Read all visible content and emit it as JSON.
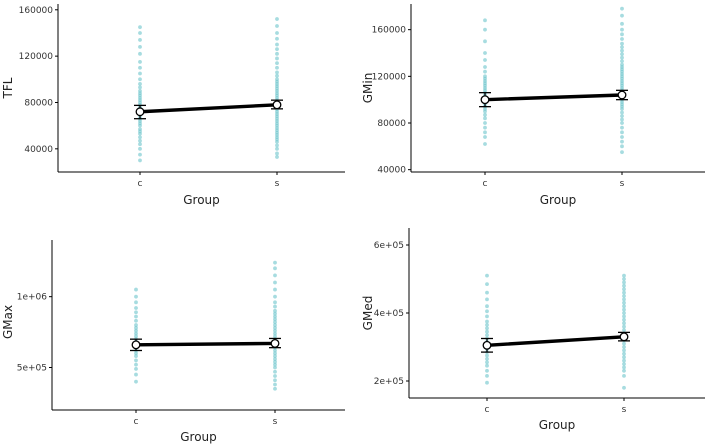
{
  "colors": {
    "points": "#6cc4cc",
    "line": "#000000"
  },
  "chart_data": [
    {
      "type": "scatter",
      "title": "",
      "xlabel": "Group",
      "ylabel": "TFL",
      "categories": [
        "c",
        "s"
      ],
      "ylim": [
        20000,
        165000
      ],
      "yticks": [
        40000,
        80000,
        120000,
        160000
      ],
      "ytick_labels": [
        "40000",
        "80000",
        "120000",
        "160000"
      ],
      "means": [
        72000,
        78000
      ],
      "ci_lower": [
        66000,
        74500
      ],
      "ci_upper": [
        77500,
        82000
      ],
      "points": {
        "c": [
          30000,
          35000,
          40000,
          44000,
          47000,
          50000,
          53000,
          55000,
          57000,
          60000,
          62000,
          64000,
          66000,
          68000,
          70000,
          72000,
          74000,
          76000,
          78000,
          80000,
          82000,
          84000,
          86000,
          88000,
          90000,
          93000,
          96000,
          100000,
          105000,
          110000,
          115000,
          122000,
          128000,
          134000,
          140000,
          145000
        ],
        "s": [
          33000,
          36000,
          40000,
          43000,
          46000,
          48000,
          50000,
          52000,
          54000,
          56000,
          58000,
          60000,
          62000,
          64000,
          66000,
          68000,
          70000,
          72000,
          74000,
          76000,
          78000,
          80000,
          82000,
          84000,
          86000,
          88000,
          90000,
          92000,
          94000,
          96000,
          98000,
          100000,
          103000,
          106000,
          110000,
          114000,
          118000,
          122000,
          126000,
          130000,
          135000,
          140000,
          146000,
          152000
        ]
      }
    },
    {
      "type": "scatter",
      "title": "",
      "xlabel": "Group",
      "ylabel": "GMin",
      "categories": [
        "c",
        "s"
      ],
      "ylim": [
        38000,
        182000
      ],
      "yticks": [
        40000,
        80000,
        120000,
        160000
      ],
      "ytick_labels": [
        "40000",
        "80000",
        "120000",
        "160000"
      ],
      "means": [
        100000,
        104000
      ],
      "ci_lower": [
        94000,
        100000
      ],
      "ci_upper": [
        106000,
        108000
      ],
      "points": {
        "c": [
          62000,
          68000,
          72000,
          76000,
          80000,
          84000,
          87000,
          90000,
          92000,
          94000,
          96000,
          98000,
          100000,
          102000,
          104000,
          106000,
          108000,
          110000,
          112000,
          114000,
          116000,
          118000,
          120000,
          124000,
          128000,
          134000,
          140000,
          150000,
          160000,
          168000
        ],
        "s": [
          55000,
          60000,
          64000,
          68000,
          72000,
          76000,
          80000,
          83000,
          86000,
          89000,
          92000,
          94000,
          96000,
          98000,
          100000,
          102000,
          104000,
          106000,
          108000,
          110000,
          112000,
          114000,
          116000,
          118000,
          120000,
          122000,
          124000,
          126000,
          128000,
          130000,
          133000,
          136000,
          139000,
          142000,
          145000,
          148000,
          152000,
          156000,
          160000,
          165000,
          172000,
          178000
        ]
      }
    },
    {
      "type": "scatter",
      "title": "",
      "xlabel": "Group",
      "ylabel": "GMax",
      "categories": [
        "c",
        "s"
      ],
      "ylim": [
        200000,
        1400000
      ],
      "yticks": [
        500000,
        1000000
      ],
      "ytick_labels": [
        "5e+05",
        "1e+06"
      ],
      "means": [
        660000,
        670000
      ],
      "ci_lower": [
        620000,
        640000
      ],
      "ci_upper": [
        700000,
        705000
      ],
      "points": {
        "c": [
          400000,
          450000,
          490000,
          520000,
          550000,
          580000,
          600000,
          620000,
          640000,
          660000,
          680000,
          700000,
          720000,
          740000,
          760000,
          780000,
          800000,
          830000,
          860000,
          890000,
          920000,
          960000,
          1000000,
          1050000
        ],
        "s": [
          350000,
          380000,
          410000,
          440000,
          470000,
          500000,
          520000,
          540000,
          560000,
          580000,
          600000,
          620000,
          640000,
          660000,
          680000,
          700000,
          720000,
          740000,
          760000,
          780000,
          800000,
          820000,
          840000,
          860000,
          880000,
          900000,
          930000,
          960000,
          1000000,
          1050000,
          1100000,
          1150000,
          1200000,
          1240000
        ]
      }
    },
    {
      "type": "scatter",
      "title": "",
      "xlabel": "Group",
      "ylabel": "GMed",
      "categories": [
        "c",
        "s"
      ],
      "ylim": [
        150000,
        650000
      ],
      "yticks": [
        200000,
        400000,
        600000
      ],
      "ytick_labels": [
        "2e+05",
        "4e+05",
        "6e+05"
      ],
      "means": [
        305000,
        330000
      ],
      "ci_lower": [
        285000,
        318000
      ],
      "ci_upper": [
        325000,
        343000
      ],
      "points": {
        "c": [
          195000,
          215000,
          230000,
          245000,
          255000,
          265000,
          275000,
          285000,
          295000,
          305000,
          315000,
          325000,
          335000,
          345000,
          355000,
          365000,
          375000,
          390000,
          405000,
          420000,
          440000,
          460000,
          485000,
          510000
        ],
        "s": [
          180000,
          215000,
          230000,
          240000,
          250000,
          260000,
          270000,
          280000,
          290000,
          300000,
          310000,
          320000,
          330000,
          340000,
          350000,
          360000,
          370000,
          380000,
          390000,
          400000,
          410000,
          420000,
          430000,
          440000,
          450000,
          460000,
          470000,
          480000,
          490000,
          500000,
          510000
        ]
      }
    }
  ]
}
